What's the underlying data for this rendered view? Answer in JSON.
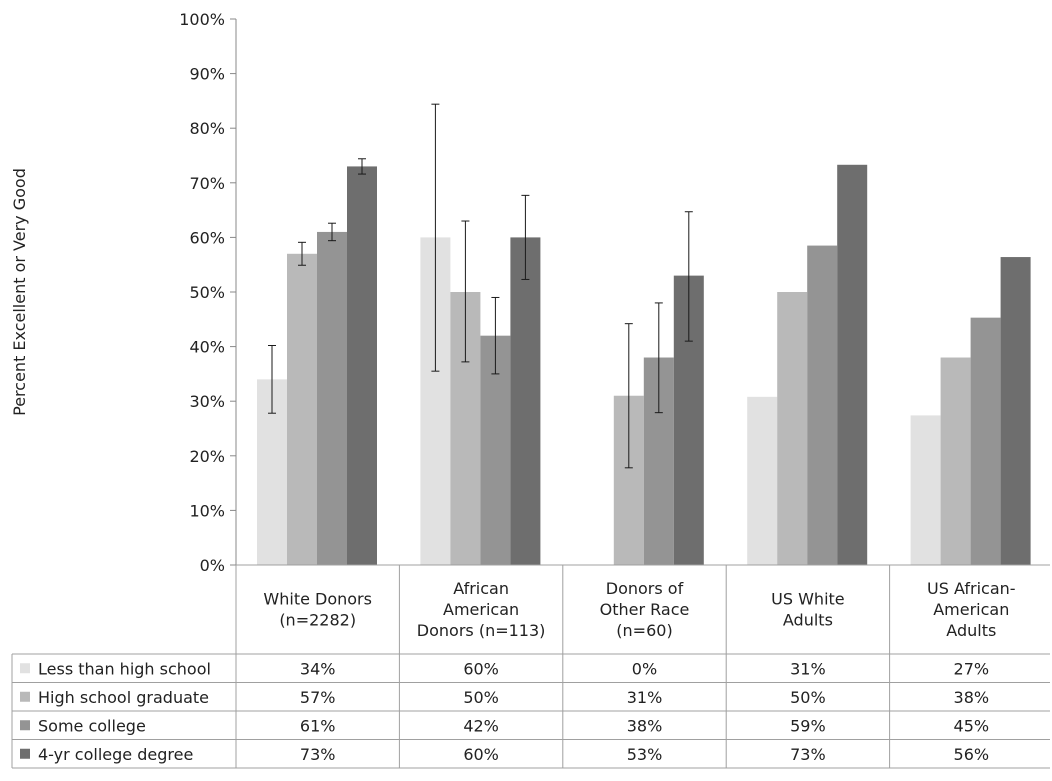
{
  "chart_data": {
    "type": "bar",
    "title": "",
    "ylabel": "Percent Excellent or Very Good",
    "xlabel": "",
    "ylim": [
      0,
      100
    ],
    "yticks": [
      0,
      10,
      20,
      30,
      40,
      50,
      60,
      70,
      80,
      90,
      100
    ],
    "ytick_labels": [
      "0%",
      "10%",
      "20%",
      "30%",
      "40%",
      "50%",
      "60%",
      "70%",
      "80%",
      "90%",
      "100%"
    ],
    "categories": [
      [
        "White Donors",
        "(n=2282)"
      ],
      [
        "African",
        "American",
        "Donors (n=113)"
      ],
      [
        "Donors of",
        "Other Race",
        "(n=60)"
      ],
      [
        "US White",
        "Adults"
      ],
      [
        "US African-",
        "American",
        "Adults"
      ]
    ],
    "legend_position": "data-table-left",
    "gridlines": false,
    "series": [
      {
        "name": "Less than high school",
        "color": "#e1e1e1",
        "values": [
          34,
          60,
          0,
          30.8,
          27.4
        ],
        "labels": [
          "34%",
          "60%",
          "0%",
          "31%",
          "27%"
        ],
        "error_low": [
          27.8,
          35.5,
          null,
          null,
          null
        ],
        "error_high": [
          40.2,
          84.4,
          null,
          null,
          null
        ]
      },
      {
        "name": "High school graduate",
        "color": "#b9b9b9",
        "values": [
          57,
          50,
          31,
          50,
          38
        ],
        "labels": [
          "57%",
          "50%",
          "31%",
          "50%",
          "38%"
        ],
        "error_low": [
          54.9,
          37.2,
          17.8,
          null,
          null
        ],
        "error_high": [
          59.1,
          63,
          44.2,
          null,
          null
        ]
      },
      {
        "name": "Some college",
        "color": "#949494",
        "values": [
          61,
          42,
          38,
          58.5,
          45.3
        ],
        "labels": [
          "61%",
          "42%",
          "38%",
          "59%",
          "45%"
        ],
        "error_low": [
          59.4,
          35,
          27.9,
          null,
          null
        ],
        "error_high": [
          62.6,
          49,
          48,
          null,
          null
        ]
      },
      {
        "name": "4-yr college degree",
        "color": "#6e6e6e",
        "values": [
          73,
          60,
          53,
          73.3,
          56.4
        ],
        "labels": [
          "73%",
          "60%",
          "53%",
          "73%",
          "56%"
        ],
        "error_low": [
          71.6,
          52.3,
          41,
          null,
          null
        ],
        "error_high": [
          74.4,
          67.7,
          64.7,
          null,
          null
        ]
      }
    ]
  }
}
